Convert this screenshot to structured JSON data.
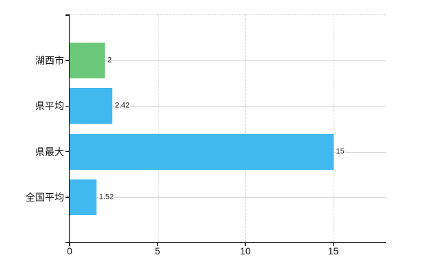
{
  "chart_data": {
    "type": "bar",
    "orientation": "horizontal",
    "title": "",
    "xlabel": "",
    "ylabel": "",
    "categories": [
      "湖西市",
      "県平均",
      "県最大",
      "全国平均"
    ],
    "values": [
      2,
      2.42,
      15,
      1.52
    ],
    "value_labels": [
      "2",
      "2.42",
      "15",
      "1.52"
    ],
    "x_ticks": [
      0,
      5,
      10,
      15
    ],
    "x_tick_labels": [
      "0",
      "5",
      "10",
      "15"
    ],
    "xlim": [
      0,
      18
    ],
    "bar_colors": [
      "#6cc97c",
      "#41b8ef",
      "#41b8ef",
      "#41b8ef"
    ],
    "legend_position": "none",
    "grid": {
      "vertical": "dashed at x ticks 5,10,15",
      "horizontal": "solid line through each category center",
      "top_border": "dashed"
    }
  },
  "colors": {
    "green_bar": "#6cc97c",
    "blue_bar": "#41b8ef",
    "axis": "#111111",
    "grid_solid": "#ccd5cc",
    "grid_dashed": "#d5cdd2",
    "text": "#222222",
    "background": "#ffffff"
  }
}
